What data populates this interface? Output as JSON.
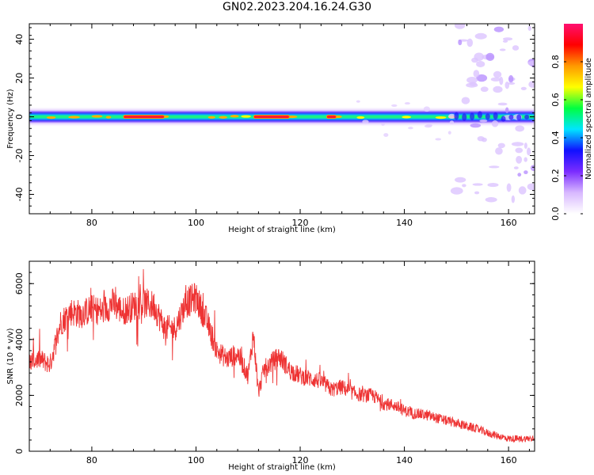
{
  "title": "GN02.2023.204.16.24.G30",
  "chart_data": [
    {
      "type": "heatmap",
      "xlabel": "Height of straight line (km)",
      "ylabel": "Frequency (Hz)",
      "xlim": [
        68,
        165
      ],
      "ylim": [
        -50,
        48
      ],
      "xticks": [
        80,
        100,
        120,
        140,
        160
      ],
      "yticks": [
        -40,
        -20,
        0,
        20,
        40
      ],
      "colorbar": {
        "label": "Normalized spectral amplitude",
        "range": [
          0,
          1
        ],
        "ticks": [
          "0.0",
          "0.2",
          "0.4",
          "0.6",
          "0.8"
        ],
        "colors": [
          "#ffffff",
          "#d8b8ff",
          "#7b2cff",
          "#1010ff",
          "#00e5ff",
          "#00ff40",
          "#ffff00",
          "#ff9900",
          "#ff0000",
          "#ff1070"
        ]
      },
      "description_band": {
        "center_frequency_hz": 0,
        "bright_segments_km": [
          [
            86,
            94
          ],
          [
            111,
            118
          ],
          [
            125,
            127
          ]
        ],
        "noise_region_km": [
          150,
          165
        ]
      }
    },
    {
      "type": "line",
      "xlabel": "Height of straight line (km)",
      "ylabel": "SNR (10 * v/v)",
      "xlim": [
        68,
        165
      ],
      "ylim": [
        0,
        6800
      ],
      "xticks": [
        80,
        100,
        120,
        140,
        160
      ],
      "yticks": [
        0,
        2000,
        4000,
        6000
      ],
      "color": "#ee3333",
      "x": [
        68,
        70,
        72,
        74,
        76,
        78,
        80,
        82,
        84,
        86,
        88,
        90,
        92,
        94,
        96,
        98,
        100,
        102,
        104,
        106,
        108,
        110,
        111,
        112,
        113,
        114,
        116,
        118,
        120,
        122,
        124,
        126,
        128,
        130,
        132,
        134,
        136,
        138,
        140,
        142,
        144,
        146,
        148,
        150,
        152,
        154,
        156,
        158,
        160,
        162,
        164,
        165
      ],
      "y": [
        3200,
        3300,
        3100,
        4600,
        5000,
        4900,
        5100,
        5000,
        5300,
        5000,
        5200,
        5300,
        5200,
        4400,
        4400,
        5300,
        5500,
        4700,
        3600,
        3300,
        3500,
        2700,
        4200,
        2100,
        2900,
        3100,
        3400,
        2900,
        2700,
        2600,
        2500,
        2200,
        2300,
        2100,
        2000,
        2000,
        1700,
        1650,
        1450,
        1350,
        1300,
        1200,
        1100,
        1000,
        900,
        800,
        650,
        550,
        450,
        450,
        450,
        500
      ]
    }
  ]
}
